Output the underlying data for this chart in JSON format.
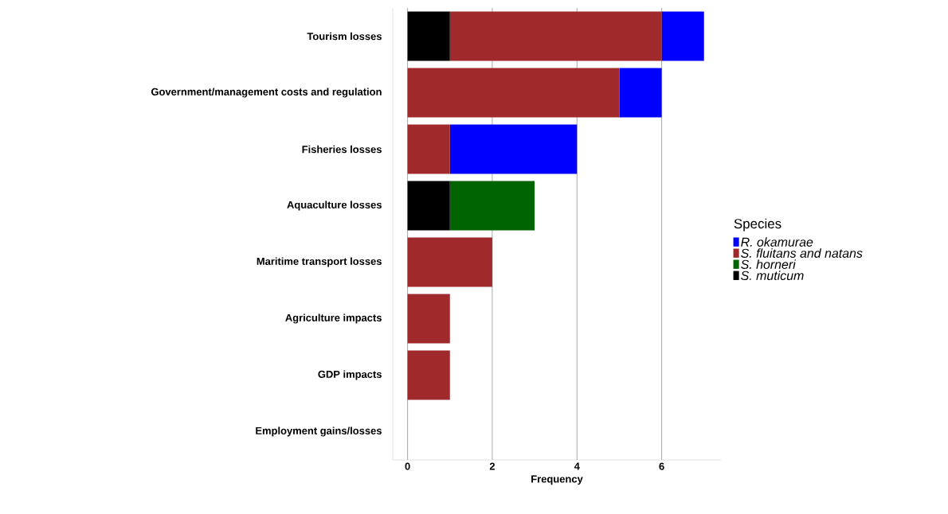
{
  "chart_data": {
    "type": "bar",
    "orientation": "horizontal",
    "stacked": true,
    "categories": [
      "Tourism losses",
      "Government/management costs and regulation",
      "Fisheries losses",
      "Aquaculture losses",
      "Maritime transport losses",
      "Agriculture impacts",
      "GDP impacts",
      "Employment gains/losses"
    ],
    "series": [
      {
        "name": "S. muticum",
        "color": "#000000",
        "values": [
          1,
          0,
          0,
          1,
          0,
          0,
          0,
          0
        ]
      },
      {
        "name": "S. horneri",
        "color": "#006400",
        "values": [
          0,
          0,
          0,
          2,
          0,
          0,
          0,
          0
        ]
      },
      {
        "name": "S. fluitans and natans",
        "color": "#a0292b",
        "values": [
          5,
          5,
          1,
          0,
          2,
          1,
          1,
          0
        ]
      },
      {
        "name": "R. okamurae",
        "color": "#0000ff",
        "values": [
          1,
          1,
          3,
          0,
          0,
          0,
          0,
          0
        ]
      }
    ],
    "xlabel": "Frequency",
    "legend_title": "Species",
    "xlim": [
      -0.35,
      7.4
    ],
    "xticks": [
      0,
      2,
      4,
      6
    ],
    "grid": "x",
    "legend": "right"
  }
}
